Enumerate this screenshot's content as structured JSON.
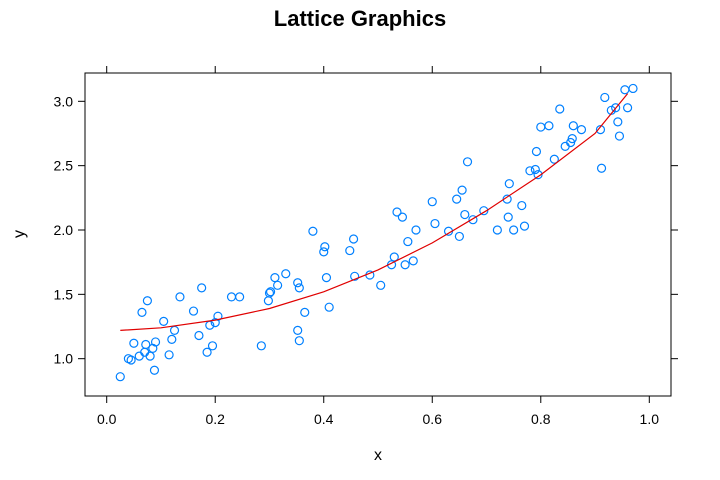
{
  "chart_data": {
    "type": "scatter",
    "title": "Lattice Graphics",
    "xlabel": "x",
    "ylabel": "y",
    "xlim": [
      -0.04,
      1.04
    ],
    "ylim": [
      0.71,
      3.22
    ],
    "xticks": [
      0.0,
      0.2,
      0.4,
      0.6,
      0.8,
      1.0
    ],
    "xtick_labels": [
      "0.0",
      "0.2",
      "0.4",
      "0.6",
      "0.8",
      "1.0"
    ],
    "yticks": [
      1.0,
      1.5,
      2.0,
      2.5,
      3.0
    ],
    "ytick_labels": [
      "1.0",
      "1.5",
      "2.0",
      "2.5",
      "3.0"
    ],
    "grid": false,
    "colors": {
      "points": "#0080ff",
      "fit_line": "#e00000",
      "frame": "#000000"
    },
    "series": [
      {
        "kind": "points",
        "x": [
          0.025,
          0.04,
          0.045,
          0.05,
          0.06,
          0.065,
          0.07,
          0.072,
          0.075,
          0.08,
          0.085,
          0.088,
          0.09,
          0.105,
          0.115,
          0.12,
          0.125,
          0.135,
          0.16,
          0.17,
          0.175,
          0.185,
          0.19,
          0.195,
          0.2,
          0.205,
          0.23,
          0.245,
          0.285,
          0.298,
          0.3,
          0.302,
          0.31,
          0.315,
          0.33,
          0.352,
          0.355,
          0.352,
          0.355,
          0.365,
          0.38,
          0.4,
          0.402,
          0.405,
          0.41,
          0.448,
          0.455,
          0.457,
          0.485,
          0.505,
          0.525,
          0.53,
          0.535,
          0.545,
          0.55,
          0.555,
          0.565,
          0.57,
          0.6,
          0.605,
          0.63,
          0.645,
          0.65,
          0.655,
          0.66,
          0.665,
          0.675,
          0.695,
          0.72,
          0.738,
          0.74,
          0.742,
          0.75,
          0.765,
          0.77,
          0.78,
          0.79,
          0.792,
          0.795,
          0.8,
          0.815,
          0.825,
          0.835,
          0.845,
          0.855,
          0.858,
          0.86,
          0.875,
          0.91,
          0.912,
          0.918,
          0.93,
          0.938,
          0.942,
          0.945,
          0.955,
          0.96,
          0.97
        ],
        "y": [
          0.86,
          1.0,
          0.99,
          1.12,
          1.02,
          1.36,
          1.05,
          1.11,
          1.45,
          1.02,
          1.08,
          0.91,
          1.13,
          1.29,
          1.03,
          1.15,
          1.22,
          1.48,
          1.37,
          1.18,
          1.55,
          1.05,
          1.26,
          1.1,
          1.28,
          1.33,
          1.48,
          1.48,
          1.1,
          1.45,
          1.51,
          1.52,
          1.63,
          1.57,
          1.66,
          1.59,
          1.55,
          1.22,
          1.14,
          1.36,
          1.99,
          1.83,
          1.87,
          1.63,
          1.4,
          1.84,
          1.93,
          1.64,
          1.65,
          1.57,
          1.73,
          1.79,
          2.14,
          2.1,
          1.73,
          1.91,
          1.76,
          2.0,
          2.22,
          2.05,
          1.99,
          2.24,
          1.95,
          2.31,
          2.12,
          2.53,
          2.08,
          2.15,
          2.0,
          2.24,
          2.1,
          2.36,
          2.0,
          2.19,
          2.03,
          2.46,
          2.47,
          2.61,
          2.43,
          2.8,
          2.81,
          2.55,
          2.94,
          2.65,
          2.68,
          2.71,
          2.81,
          2.78,
          2.78,
          2.48,
          3.03,
          2.93,
          2.95,
          2.84,
          2.73,
          3.09,
          2.95,
          3.1
        ]
      },
      {
        "kind": "line",
        "x": [
          0.025,
          0.1,
          0.2,
          0.3,
          0.4,
          0.5,
          0.6,
          0.7,
          0.8,
          0.9,
          0.96
        ],
        "y": [
          1.22,
          1.24,
          1.3,
          1.39,
          1.52,
          1.69,
          1.9,
          2.15,
          2.43,
          2.75,
          3.06
        ]
      }
    ]
  }
}
